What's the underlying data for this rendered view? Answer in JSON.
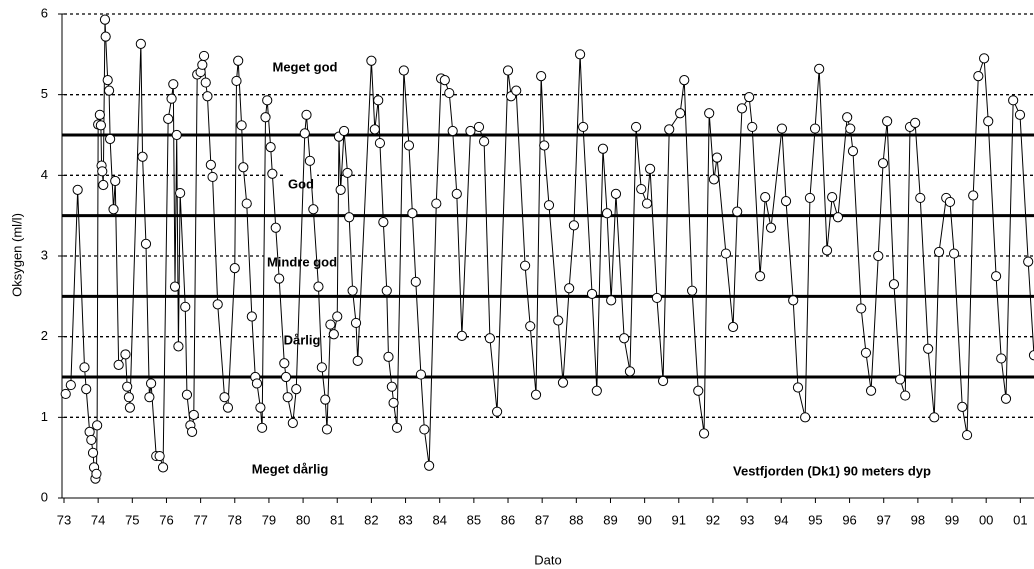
{
  "chart_data": {
    "type": "line",
    "y_label": "Oksygen (ml/l)",
    "x_label": "Dato",
    "annotations": [
      "Meget god",
      "God",
      "Mindre god",
      "Dårlig",
      "Meget dårlig",
      "Vestfjorden (Dk1) 90 meters dyp"
    ],
    "xlim": [
      1973,
      2001.4
    ],
    "ylim": [
      0,
      6
    ],
    "yticks": [
      0,
      1,
      2,
      3,
      4,
      5,
      6
    ],
    "xticks": [
      {
        "value": 1973,
        "label": "73"
      },
      {
        "value": 1974,
        "label": "74"
      },
      {
        "value": 1975,
        "label": "75"
      },
      {
        "value": 1976,
        "label": "76"
      },
      {
        "value": 1977,
        "label": "77"
      },
      {
        "value": 1978,
        "label": "78"
      },
      {
        "value": 1979,
        "label": "79"
      },
      {
        "value": 1980,
        "label": "80"
      },
      {
        "value": 1981,
        "label": "81"
      },
      {
        "value": 1982,
        "label": "82"
      },
      {
        "value": 1983,
        "label": "83"
      },
      {
        "value": 1984,
        "label": "84"
      },
      {
        "value": 1985,
        "label": "85"
      },
      {
        "value": 1986,
        "label": "86"
      },
      {
        "value": 1987,
        "label": "87"
      },
      {
        "value": 1988,
        "label": "88"
      },
      {
        "value": 1989,
        "label": "89"
      },
      {
        "value": 1990,
        "label": "90"
      },
      {
        "value": 1991,
        "label": "91"
      },
      {
        "value": 1992,
        "label": "92"
      },
      {
        "value": 1993,
        "label": "93"
      },
      {
        "value": 1994,
        "label": "94"
      },
      {
        "value": 1995,
        "label": "95"
      },
      {
        "value": 1996,
        "label": "96"
      },
      {
        "value": 1997,
        "label": "97"
      },
      {
        "value": 1998,
        "label": "98"
      },
      {
        "value": 1999,
        "label": "99"
      },
      {
        "value": 2000,
        "label": "00"
      },
      {
        "value": 2001,
        "label": "01"
      }
    ],
    "grid": true,
    "thresholds": [
      1.5,
      2.5,
      3.5,
      4.5
    ],
    "color": "#000000",
    "marker_fill": "#ffffff",
    "x": [
      1973.05,
      1973.2,
      1973.4,
      1973.6,
      1973.65,
      1973.75,
      1973.8,
      1973.85,
      1973.88,
      1973.92,
      1973.95,
      1973.97,
      1974.0,
      1974.05,
      1974.08,
      1974.1,
      1974.12,
      1974.15,
      1974.2,
      1974.22,
      1974.28,
      1974.32,
      1974.35,
      1974.45,
      1974.5,
      1974.6,
      1974.8,
      1974.85,
      1974.9,
      1974.93,
      1975.25,
      1975.3,
      1975.4,
      1975.5,
      1975.55,
      1975.7,
      1975.8,
      1975.9,
      1976.05,
      1976.15,
      1976.2,
      1976.25,
      1976.3,
      1976.35,
      1976.4,
      1976.55,
      1976.6,
      1976.7,
      1976.75,
      1976.8,
      1976.9,
      1977.0,
      1977.05,
      1977.1,
      1977.15,
      1977.2,
      1977.3,
      1977.35,
      1977.5,
      1977.7,
      1977.8,
      1978.0,
      1978.05,
      1978.1,
      1978.2,
      1978.25,
      1978.35,
      1978.5,
      1978.6,
      1978.65,
      1978.75,
      1978.8,
      1978.9,
      1978.95,
      1979.05,
      1979.1,
      1979.2,
      1979.3,
      1979.45,
      1979.5,
      1979.55,
      1979.7,
      1979.8,
      1980.05,
      1980.1,
      1980.2,
      1980.3,
      1980.45,
      1980.55,
      1980.65,
      1980.7,
      1980.8,
      1980.9,
      1981.0,
      1981.05,
      1981.1,
      1981.2,
      1981.3,
      1981.35,
      1981.45,
      1981.55,
      1981.6,
      1982.0,
      1982.1,
      1982.2,
      1982.25,
      1982.35,
      1982.45,
      1982.5,
      1982.6,
      1982.65,
      1982.75,
      1982.95,
      1983.1,
      1983.2,
      1983.3,
      1983.45,
      1983.55,
      1983.69,
      1983.9,
      1984.04,
      1984.15,
      1984.28,
      1984.38,
      1984.5,
      1984.65,
      1984.9,
      1985.15,
      1985.3,
      1985.47,
      1985.68,
      1986.0,
      1986.09,
      1986.24,
      1986.5,
      1986.65,
      1986.82,
      1986.97,
      1987.06,
      1987.2,
      1987.47,
      1987.61,
      1987.79,
      1987.93,
      1988.11,
      1988.2,
      1988.46,
      1988.6,
      1988.78,
      1988.9,
      1989.02,
      1989.16,
      1989.4,
      1989.57,
      1989.75,
      1989.9,
      1990.07,
      1990.16,
      1990.36,
      1990.54,
      1990.72,
      1991.04,
      1991.16,
      1991.39,
      1991.57,
      1991.74,
      1991.89,
      1992.03,
      1992.12,
      1992.38,
      1992.59,
      1992.71,
      1992.85,
      1993.06,
      1993.15,
      1993.38,
      1993.53,
      1993.7,
      1994.02,
      1994.14,
      1994.35,
      1994.49,
      1994.7,
      1994.84,
      1994.99,
      1995.11,
      1995.34,
      1995.49,
      1995.66,
      1995.93,
      1996.02,
      1996.1,
      1996.34,
      1996.48,
      1996.63,
      1996.84,
      1996.98,
      1997.1,
      1997.3,
      1997.48,
      1997.63,
      1997.77,
      1997.92,
      1998.07,
      1998.3,
      1998.48,
      1998.62,
      1998.83,
      1998.94,
      1999.06,
      1999.3,
      1999.44,
      1999.62,
      1999.77,
      1999.94,
      2000.06,
      2000.29,
      2000.44,
      2000.58,
      2000.79,
      2000.99,
      2001.23,
      2001.4
    ],
    "values": [
      1.29,
      1.4,
      3.82,
      1.62,
      1.35,
      0.82,
      0.72,
      0.56,
      0.38,
      0.24,
      0.3,
      0.9,
      4.63,
      4.75,
      4.62,
      4.12,
      4.05,
      3.88,
      5.93,
      5.72,
      5.18,
      5.05,
      4.45,
      3.58,
      3.93,
      1.65,
      1.78,
      1.38,
      1.25,
      1.12,
      5.63,
      4.23,
      3.15,
      1.25,
      1.42,
      0.52,
      0.52,
      0.38,
      4.7,
      4.95,
      5.13,
      2.62,
      4.5,
      1.88,
      3.78,
      2.37,
      1.28,
      0.9,
      0.82,
      1.03,
      5.25,
      5.28,
      5.37,
      5.48,
      5.15,
      4.98,
      4.13,
      3.98,
      2.4,
      1.25,
      1.12,
      2.85,
      5.17,
      5.42,
      4.62,
      4.1,
      3.65,
      2.25,
      1.5,
      1.42,
      1.12,
      0.87,
      4.72,
      4.93,
      4.35,
      4.02,
      3.35,
      2.72,
      1.67,
      1.5,
      1.25,
      0.93,
      1.35,
      4.52,
      4.75,
      4.18,
      3.58,
      2.62,
      1.62,
      1.22,
      0.85,
      2.15,
      2.03,
      2.25,
      4.48,
      3.82,
      4.55,
      4.03,
      3.48,
      2.57,
      2.17,
      1.7,
      5.42,
      4.57,
      4.93,
      4.4,
      3.42,
      2.57,
      1.75,
      1.38,
      1.18,
      0.87,
      5.3,
      4.37,
      3.53,
      2.68,
      1.53,
      0.85,
      0.4,
      3.65,
      5.2,
      5.18,
      5.02,
      4.55,
      3.77,
      2.01,
      4.55,
      4.6,
      4.42,
      1.98,
      1.07,
      5.3,
      4.98,
      5.05,
      2.88,
      2.13,
      1.28,
      5.23,
      4.37,
      3.63,
      2.2,
      1.43,
      2.6,
      3.38,
      5.5,
      4.6,
      2.53,
      1.33,
      4.33,
      3.53,
      2.45,
      3.77,
      1.98,
      1.57,
      4.6,
      3.83,
      3.65,
      4.08,
      2.48,
      1.45,
      4.57,
      4.77,
      5.18,
      2.57,
      1.33,
      0.8,
      4.77,
      3.95,
      4.22,
      3.03,
      2.12,
      3.55,
      4.83,
      4.97,
      4.6,
      2.75,
      3.73,
      3.35,
      4.58,
      3.68,
      2.45,
      1.37,
      1.0,
      3.72,
      4.58,
      5.32,
      3.07,
      3.73,
      3.48,
      4.72,
      4.58,
      4.3,
      2.35,
      1.8,
      1.33,
      3.0,
      4.15,
      4.67,
      2.65,
      1.47,
      1.27,
      4.6,
      4.65,
      3.72,
      1.85,
      1.0,
      3.05,
      3.72,
      3.67,
      3.03,
      1.13,
      0.78,
      3.75,
      5.23,
      5.45,
      4.67,
      2.75,
      1.73,
      1.23,
      4.93,
      4.75,
      2.93,
      1.77
    ]
  }
}
